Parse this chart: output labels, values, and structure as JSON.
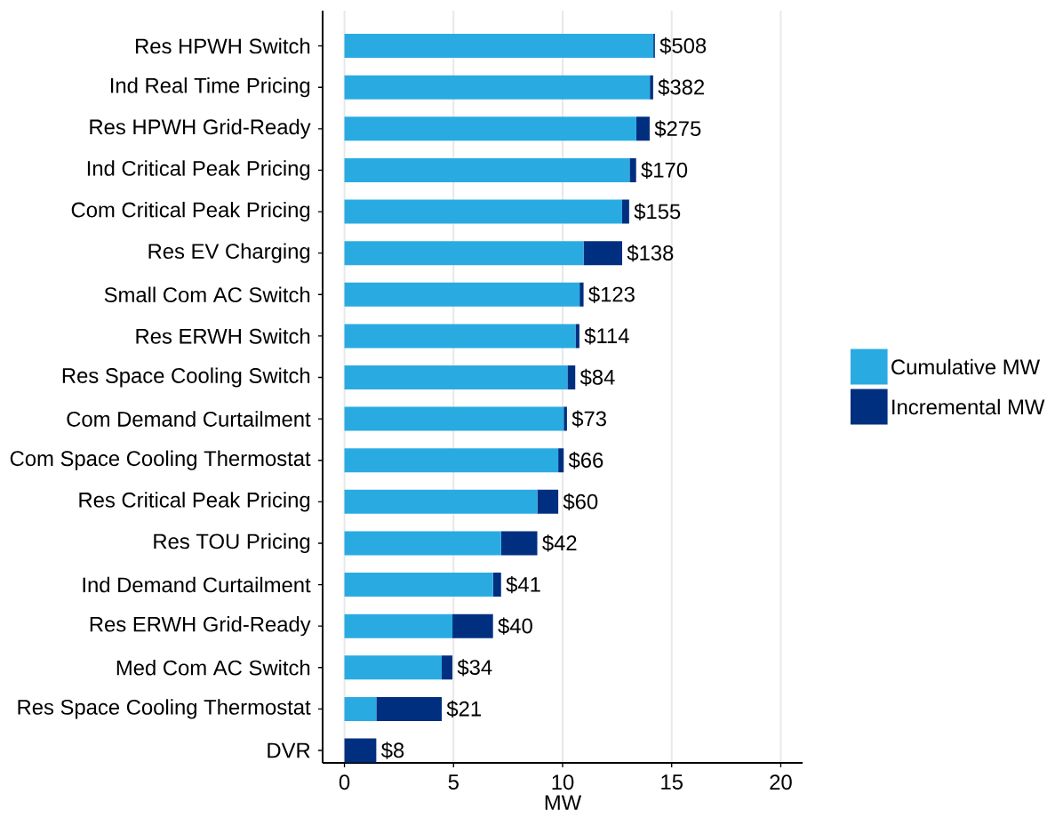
{
  "chart_data": {
    "type": "bar",
    "orientation": "horizontal",
    "stacked": true,
    "categories": [
      "Res HPWH Switch",
      "Ind Real Time Pricing",
      "Res HPWH Grid-Ready",
      "Ind Critical Peak Pricing",
      "Com Critical Peak Pricing",
      "Res EV Charging",
      "Small Com AC Switch",
      "Res ERWH Switch",
      "Res Space Cooling Switch",
      "Com Demand Curtailment",
      "Com Space Cooling Thermostat",
      "Res Critical Peak Pricing",
      "Res TOU Pricing",
      "Ind Demand Curtailment",
      "Res ERWH Grid-Ready",
      "Med Com AC Switch",
      "Res Space Cooling Thermostat",
      "DVR"
    ],
    "series": [
      {
        "name": "Cumulative MW",
        "color": "#29abe2",
        "values": [
          14.16,
          14.0,
          13.38,
          13.07,
          12.73,
          10.96,
          10.78,
          10.59,
          10.22,
          10.05,
          9.8,
          8.84,
          7.18,
          6.81,
          4.95,
          4.46,
          1.46,
          0
        ]
      },
      {
        "name": "Incremental MW",
        "color": "#002f80",
        "values": [
          0.07,
          0.15,
          0.61,
          0.3,
          0.32,
          1.77,
          0.18,
          0.18,
          0.36,
          0.15,
          0.25,
          0.96,
          1.66,
          0.37,
          1.86,
          0.49,
          3.0,
          1.46
        ]
      }
    ],
    "annotations": [
      {
        "text": "$508",
        "x": 14.23,
        "y": "Res HPWH Switch"
      },
      {
        "text": "$382",
        "x": 14.15,
        "y": "Ind Real Time Pricing"
      },
      {
        "text": "$275",
        "x": 13.99,
        "y": "Res HPWH Grid-Ready"
      },
      {
        "text": "$170",
        "x": 13.37,
        "y": "Ind Critical Peak Pricing"
      },
      {
        "text": "$155",
        "x": 13.05,
        "y": "Com Critical Peak Pricing"
      },
      {
        "text": "$138",
        "x": 12.73,
        "y": "Res EV Charging"
      },
      {
        "text": "$123",
        "x": 10.96,
        "y": "Small Com AC Switch"
      },
      {
        "text": "$114",
        "x": 10.77,
        "y": "Res ERWH Switch"
      },
      {
        "text": "$84",
        "x": 10.58,
        "y": "Res Space Cooling Switch"
      },
      {
        "text": "$73",
        "x": 10.2,
        "y": "Com Demand Curtailment"
      },
      {
        "text": "$66",
        "x": 10.05,
        "y": "Com Space Cooling Thermostat"
      },
      {
        "text": "$60",
        "x": 9.8,
        "y": "Res Critical Peak Pricing"
      },
      {
        "text": "$42",
        "x": 8.84,
        "y": "Res TOU Pricing"
      },
      {
        "text": "$41",
        "x": 7.18,
        "y": "Ind Demand Curtailment"
      },
      {
        "text": "$40",
        "x": 6.81,
        "y": "Res ERWH Grid-Ready"
      },
      {
        "text": "$34",
        "x": 4.95,
        "y": "Med Com AC Switch"
      },
      {
        "text": "$21",
        "x": 4.46,
        "y": "Res Space Cooling Thermostat"
      },
      {
        "text": "$8",
        "x": 1.46,
        "y": "DVR"
      }
    ],
    "xlabel": "MW",
    "xlim": [
      -1,
      21
    ],
    "xticks": [
      0,
      5,
      10,
      15,
      20
    ],
    "grid": "x",
    "legend": "right"
  }
}
